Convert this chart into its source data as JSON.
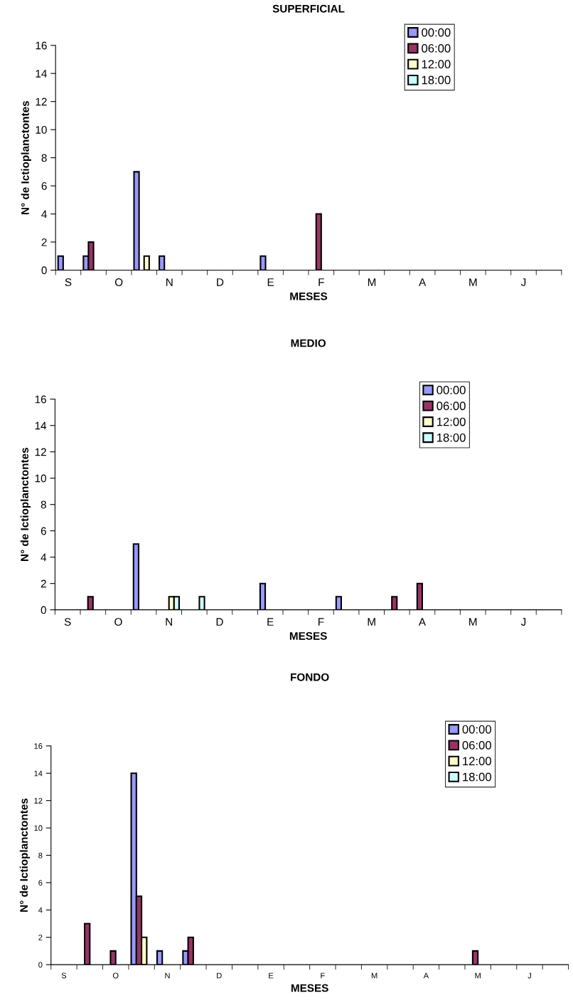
{
  "chart_data": [
    {
      "type": "bar",
      "title": "SUPERFICIAL",
      "xlabel": "MESES",
      "ylabel": "N° de Ictioplanctontes",
      "categories": [
        "S",
        null,
        "O",
        null,
        "N",
        null,
        "D",
        null,
        "E",
        null,
        "F",
        null,
        "M",
        null,
        "A",
        null,
        "M",
        null,
        "J",
        null
      ],
      "ylim": [
        0,
        16
      ],
      "yticks": [
        0,
        2,
        4,
        6,
        8,
        10,
        12,
        14,
        16
      ],
      "legend": "top right",
      "grid": false,
      "series": [
        {
          "name": "00:00",
          "color": "#9999ff",
          "values": [
            1,
            1,
            0,
            7,
            1,
            0,
            0,
            0,
            1,
            0,
            0,
            0,
            0,
            0,
            0,
            0,
            0,
            0,
            0,
            0
          ]
        },
        {
          "name": "06:00",
          "color": "#993366",
          "values": [
            0,
            2,
            0,
            0,
            0,
            0,
            0,
            0,
            0,
            0,
            4,
            0,
            0,
            0,
            0,
            0,
            0,
            0,
            0,
            0
          ]
        },
        {
          "name": "12:00",
          "color": "#ffffcc",
          "values": [
            0,
            0,
            0,
            1,
            0,
            0,
            0,
            0,
            0,
            0,
            0,
            0,
            0,
            0,
            0,
            0,
            0,
            0,
            0,
            0
          ]
        },
        {
          "name": "18:00",
          "color": "#ccffff",
          "values": [
            0,
            0,
            0,
            0,
            0,
            0,
            0,
            0,
            0,
            0,
            0,
            0,
            0,
            0,
            0,
            0,
            0,
            0,
            0,
            0
          ]
        }
      ]
    },
    {
      "type": "bar",
      "title": "MEDIO",
      "xlabel": "MESES",
      "ylabel": "N° de Ictioplanctontes",
      "categories": [
        "S",
        null,
        "O",
        null,
        "N",
        null,
        "D",
        null,
        "E",
        null,
        "F",
        null,
        "M",
        null,
        "A",
        null,
        "M",
        null,
        "J",
        null
      ],
      "ylim": [
        0,
        16
      ],
      "yticks": [
        0,
        2,
        4,
        6,
        8,
        10,
        12,
        14,
        16
      ],
      "legend": "top right",
      "grid": false,
      "series": [
        {
          "name": "00:00",
          "color": "#9999ff",
          "values": [
            0,
            0,
            0,
            5,
            0,
            0,
            0,
            0,
            2,
            0,
            0,
            1,
            0,
            0,
            0,
            0,
            0,
            0,
            0,
            0
          ]
        },
        {
          "name": "06:00",
          "color": "#993366",
          "values": [
            0,
            1,
            0,
            0,
            0,
            0,
            0,
            0,
            0,
            0,
            0,
            0,
            0,
            1,
            2,
            0,
            0,
            0,
            0,
            0
          ]
        },
        {
          "name": "12:00",
          "color": "#ffffcc",
          "values": [
            0,
            0,
            0,
            0,
            1,
            0,
            0,
            0,
            0,
            0,
            0,
            0,
            0,
            0,
            0,
            0,
            0,
            0,
            0,
            0
          ]
        },
        {
          "name": "18:00",
          "color": "#ccffff",
          "values": [
            0,
            0,
            0,
            0,
            1,
            1,
            0,
            0,
            0,
            0,
            0,
            0,
            0,
            0,
            0,
            0,
            0,
            0,
            0,
            0
          ]
        }
      ]
    },
    {
      "type": "bar",
      "title": "FONDO",
      "xlabel": "MESES",
      "ylabel": "N° de Ictioplanctontes",
      "categories": [
        "S",
        null,
        "O",
        null,
        "N",
        null,
        "D",
        null,
        "E",
        null,
        "F",
        null,
        "M",
        null,
        "A",
        null,
        "M",
        null,
        "J",
        null
      ],
      "ylim": [
        0,
        16
      ],
      "yticks": [
        0,
        2,
        4,
        6,
        8,
        10,
        12,
        14,
        16
      ],
      "legend": "top right",
      "grid": false,
      "series": [
        {
          "name": "00:00",
          "color": "#9999ff",
          "values": [
            0,
            0,
            0,
            14,
            1,
            1,
            0,
            0,
            0,
            0,
            0,
            0,
            0,
            0,
            0,
            0,
            0,
            0,
            0,
            0
          ]
        },
        {
          "name": "06:00",
          "color": "#993366",
          "values": [
            0,
            3,
            1,
            5,
            0,
            2,
            0,
            0,
            0,
            0,
            0,
            0,
            0,
            0,
            0,
            0,
            1,
            0,
            0,
            0
          ]
        },
        {
          "name": "12:00",
          "color": "#ffffcc",
          "values": [
            0,
            0,
            0,
            2,
            0,
            0,
            0,
            0,
            0,
            0,
            0,
            0,
            0,
            0,
            0,
            0,
            0,
            0,
            0,
            0
          ]
        },
        {
          "name": "18:00",
          "color": "#ccffff",
          "values": [
            0,
            0,
            0,
            0,
            0,
            0,
            0,
            0,
            0,
            0,
            0,
            0,
            0,
            0,
            0,
            0,
            0,
            0,
            0,
            0
          ]
        }
      ]
    }
  ]
}
